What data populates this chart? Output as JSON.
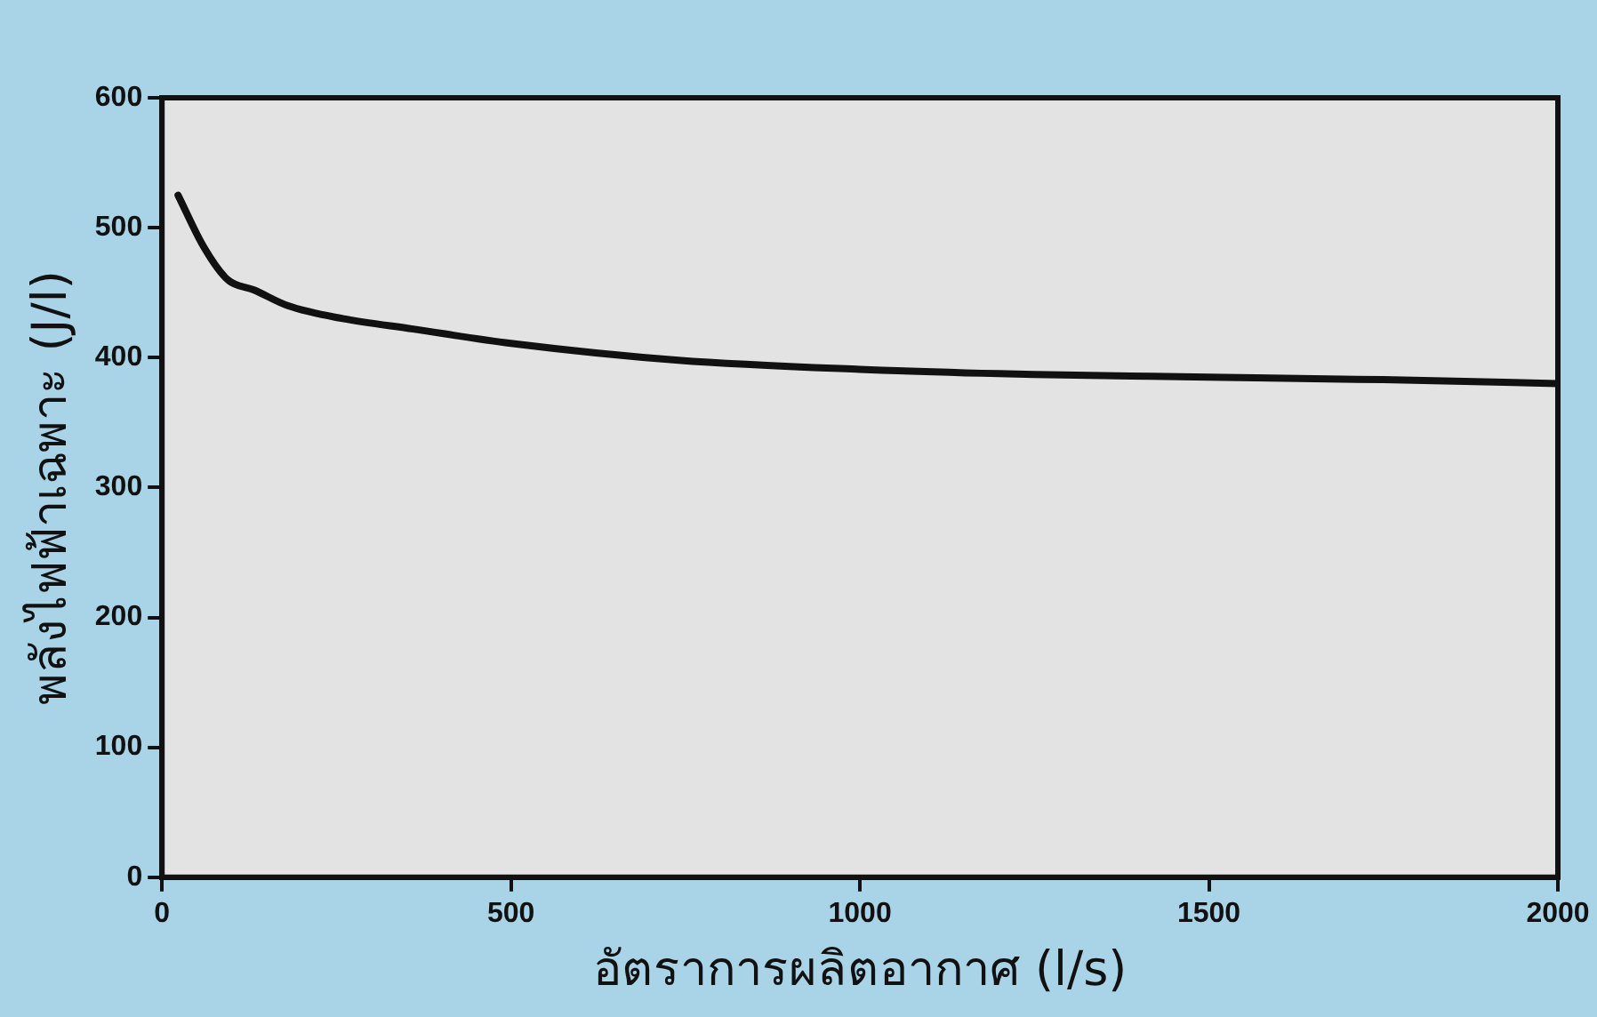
{
  "chart_data": {
    "type": "line",
    "xlabel": "อัตราการผลิตอากาศ (l/s)",
    "ylabel": "พลังไฟฟ้าเฉพาะ (J/l)",
    "series": [
      {
        "color": "#111111",
        "x": [
          23,
          60,
          94,
          132,
          180,
          259,
          360,
          500,
          740,
          1000,
          1250,
          1500,
          1750,
          2000
        ],
        "values": [
          525,
          485,
          460,
          452,
          440,
          430,
          422,
          411,
          398,
          391,
          387,
          385,
          383,
          380
        ]
      }
    ],
    "xlim": [
      0,
      2000
    ],
    "xticks": [
      0,
      500,
      1000,
      1500,
      2000
    ],
    "ylim": [
      0,
      600
    ],
    "yticks": [
      0,
      100,
      200,
      300,
      400,
      500,
      600
    ],
    "grid": false,
    "legend": false,
    "marker": "none",
    "line_style": "solid"
  }
}
